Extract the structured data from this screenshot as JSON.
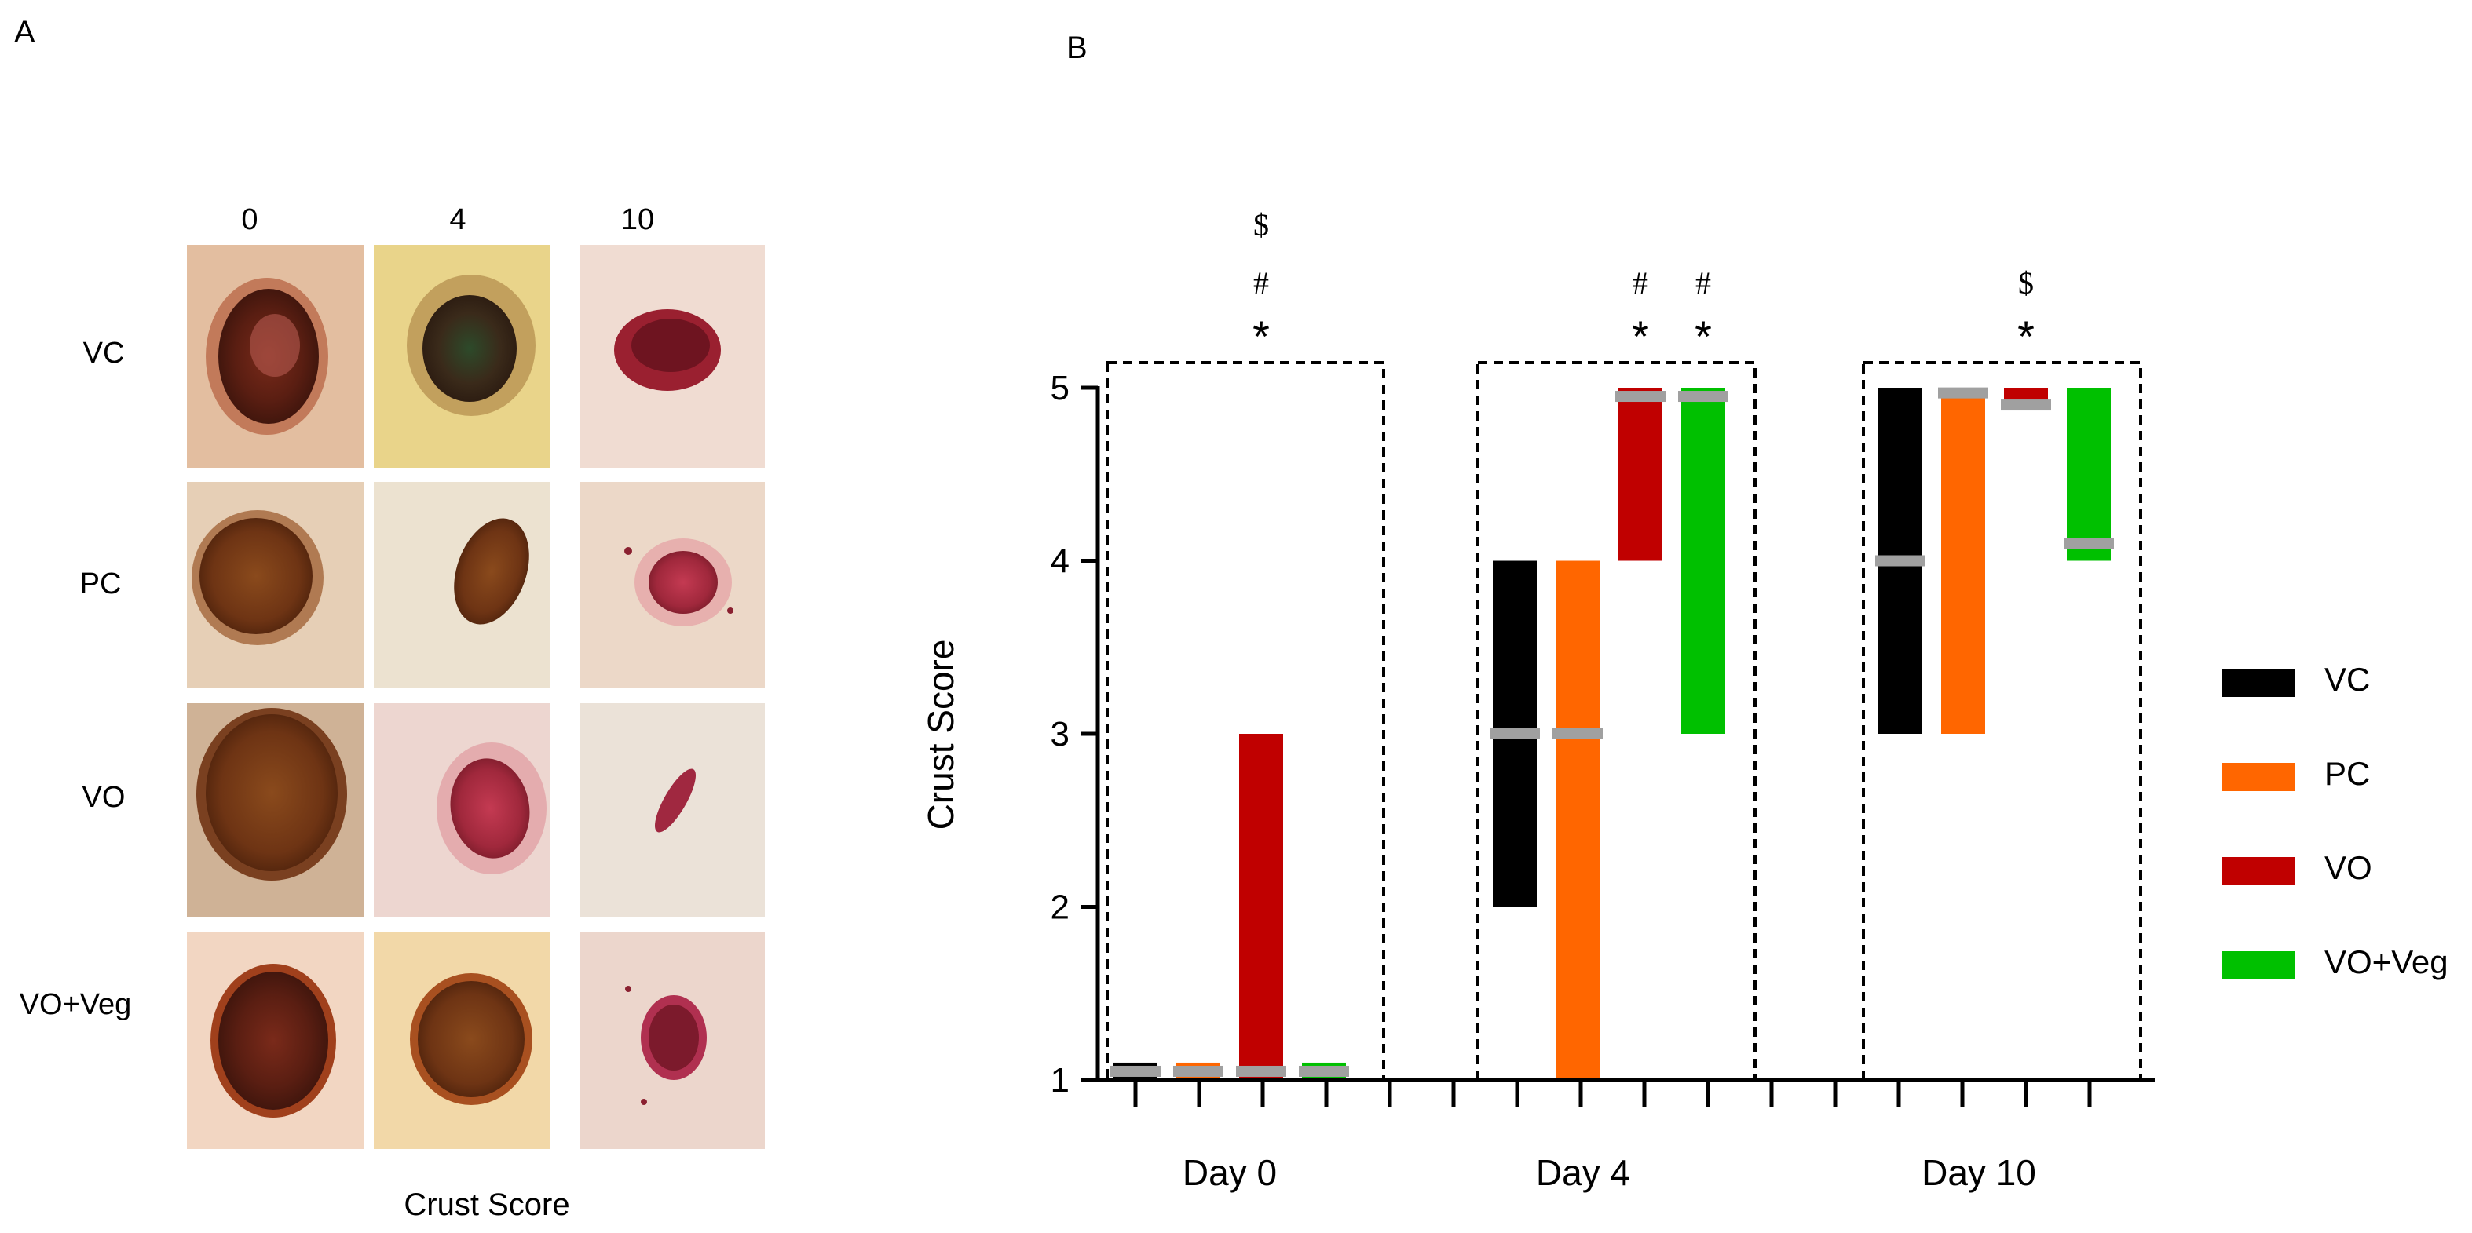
{
  "panel_a": {
    "label": "A",
    "column_labels": [
      "0",
      "4",
      "10"
    ],
    "row_labels": [
      "VC",
      "PC",
      "VO",
      "VO+Veg"
    ],
    "xlabel": "Crust Score"
  },
  "chart_data": {
    "type": "bar",
    "panel_label": "B",
    "ylabel": "Crust Score",
    "ylim": [
      1,
      5
    ],
    "yticks": [
      1,
      2,
      3,
      4,
      5
    ],
    "groups": [
      "Day 0",
      "Day 4",
      "Day 10"
    ],
    "series": [
      {
        "name": "VC",
        "color": "#000000",
        "ranges": [
          [
            1,
            1.1
          ],
          [
            2,
            4
          ],
          [
            3,
            5
          ]
        ],
        "medians": [
          1.05,
          3,
          4
        ]
      },
      {
        "name": "PC",
        "color": "#ff6600",
        "ranges": [
          [
            1,
            1.1
          ],
          [
            1,
            4
          ],
          [
            3,
            5
          ]
        ],
        "medians": [
          1.05,
          3,
          4.97
        ]
      },
      {
        "name": "VO",
        "color": "#c00000",
        "ranges": [
          [
            1,
            3
          ],
          [
            4,
            5
          ],
          [
            4.9,
            5
          ]
        ],
        "medians": [
          1.05,
          4.95,
          4.9
        ]
      },
      {
        "name": "VO+Veg",
        "color": "#00c000",
        "ranges": [
          [
            1,
            1.1
          ],
          [
            3,
            5
          ],
          [
            4,
            5
          ]
        ],
        "medians": [
          1.05,
          4.95,
          4.1
        ]
      }
    ],
    "median_color": "#a0a0a0",
    "annotations": [
      {
        "group": 0,
        "series": 2,
        "symbols": [
          "$",
          "#",
          "*"
        ]
      },
      {
        "group": 1,
        "series": 2,
        "symbols": [
          "#",
          "*"
        ]
      },
      {
        "group": 1,
        "series": 3,
        "symbols": [
          "#",
          "*"
        ]
      },
      {
        "group": 2,
        "series": 2,
        "symbols": [
          "$",
          "*"
        ]
      }
    ],
    "legend": {
      "position": "right",
      "entries": [
        "VC",
        "PC",
        "VO",
        "VO+Veg"
      ]
    }
  }
}
